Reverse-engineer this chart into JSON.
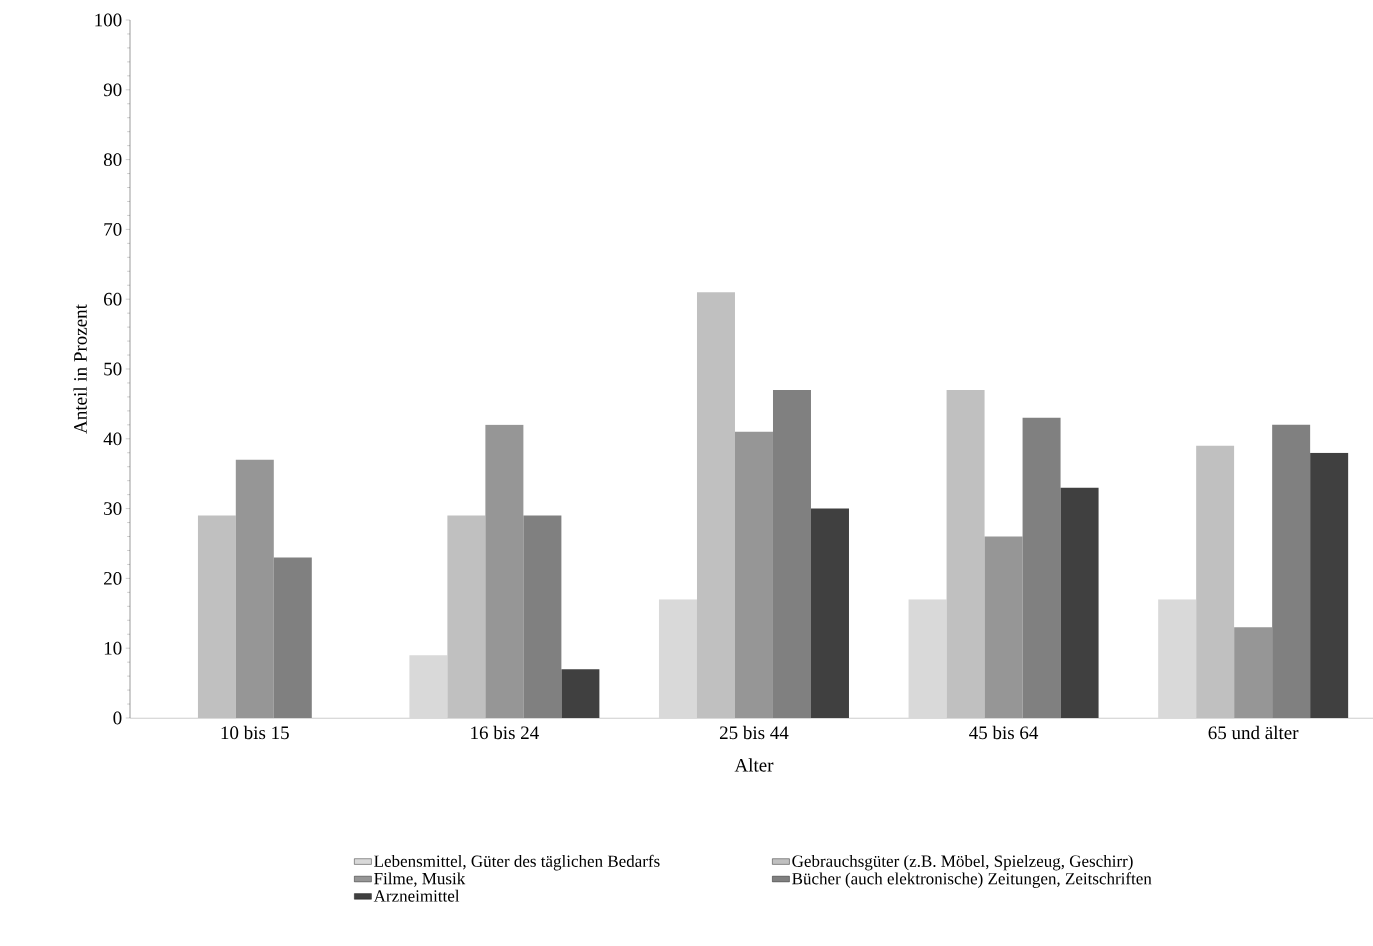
{
  "chart_data": {
    "type": "bar",
    "xlabel": "Alter",
    "ylabel": "Anteil in Prozent",
    "categories": [
      "10 bis 15",
      "16 bis 24",
      "25 bis 44",
      "45 bis 64",
      "65 und älter"
    ],
    "series": [
      {
        "name": "Lebensmittel, Güter des täglichen Bedarfs",
        "color": "#d9d9d9",
        "values": [
          null,
          9,
          17,
          17,
          17
        ]
      },
      {
        "name": "Gebrauchsgüter (z.B. Möbel, Spielzeug, Geschirr)",
        "color": "#c0c0c0",
        "values": [
          29,
          29,
          61,
          47,
          39
        ]
      },
      {
        "name": "Filme, Musik",
        "color": "#969696",
        "values": [
          37,
          42,
          41,
          26,
          13
        ]
      },
      {
        "name": "Bücher (auch elektronische) Zeitungen, Zeitschriften",
        "color": "#808080",
        "values": [
          23,
          29,
          47,
          43,
          42
        ]
      },
      {
        "name": "Arzneimittel",
        "color": "#404040",
        "values": [
          null,
          7,
          30,
          33,
          38
        ]
      }
    ],
    "ylim": [
      0,
      100
    ],
    "yticks": [
      0,
      10,
      20,
      30,
      40,
      50,
      60,
      70,
      80,
      90,
      100
    ],
    "grid": false,
    "legend": "bottom"
  }
}
